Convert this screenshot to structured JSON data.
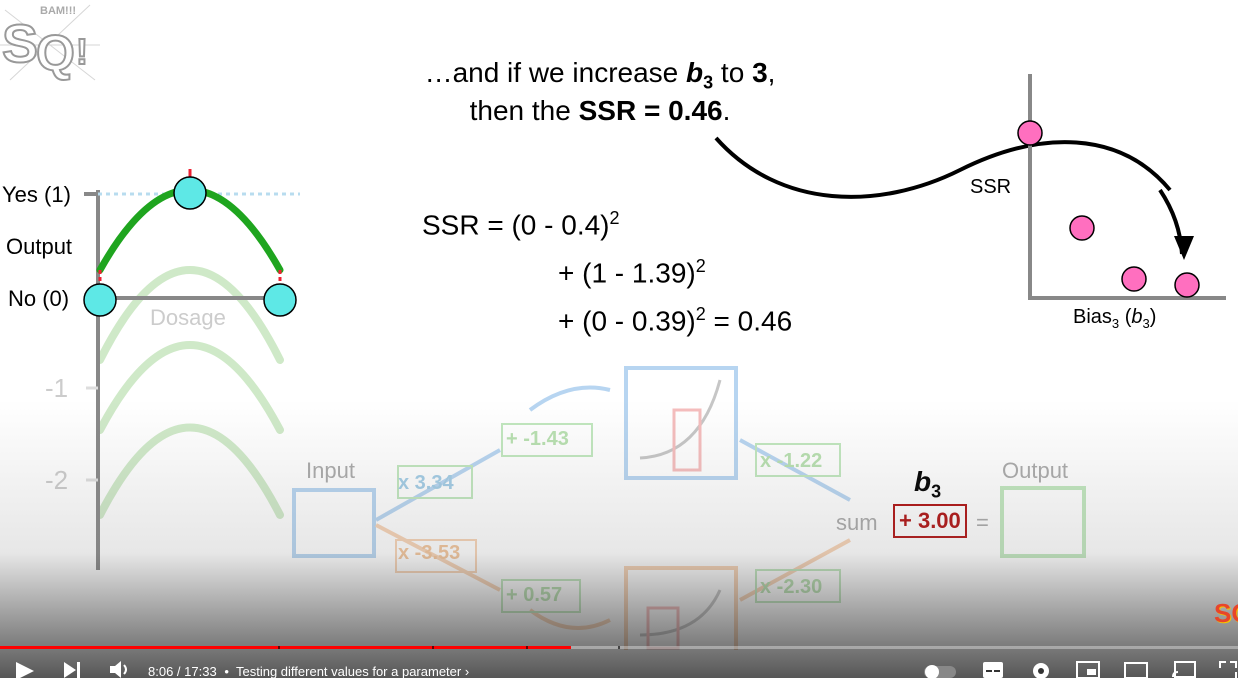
{
  "caption": {
    "line1_pre": "…and if we increase ",
    "line1_b": "b",
    "line1_sub": "3",
    "line1_mid": " to ",
    "line1_val": "3",
    "line1_end": ",",
    "line2_pre": "then the ",
    "line2_bold": "SSR = 0.46",
    "line2_end": "."
  },
  "equation": {
    "line1": "SSR = (0 - 0.4)",
    "line2": "+ (1 - 1.39)",
    "line3": "+ (0 - 0.39)",
    "line3_end": " = 0.46",
    "sup": "2"
  },
  "left_graph": {
    "yes_label": "Yes (1)",
    "output_label": "Output",
    "no_label": "No (0)",
    "dosage_label": "Dosage",
    "tick_minus1": "-1",
    "tick_minus2": "-2"
  },
  "ssr_plot": {
    "y_label": "SSR",
    "x_label_pre": "Bias",
    "x_label_sub": "3",
    "x_label_mid": " (",
    "x_label_b": "b",
    "x_label_bsub": "3",
    "x_label_end": ")"
  },
  "network": {
    "input_label": "Input",
    "output_label": "Output",
    "w_top": "x 3.34",
    "w_bottom": "x -3.53",
    "b_top": "+ -1.43",
    "b_bottom": "+ 0.57",
    "w_out_top": "x -1.22",
    "w_out_bottom": "x -2.30",
    "sum_label": "sum",
    "b3_label": "b",
    "b3_sub": "3",
    "b3_value": "+ 3.00",
    "equals": "="
  },
  "logo": {
    "text": "SQ!",
    "top_text": "BAM!!!"
  },
  "player": {
    "time_current": "8:06",
    "time_total": "17:33",
    "time_sep": " / ",
    "bullet": "•",
    "chapter_title": "Testing different values for a parameter",
    "chevron": "›",
    "progress_fraction": 0.461
  },
  "colors": {
    "green_curve": "#1fa51f",
    "faded_green": "#bfe3b6",
    "cyan_dot": "#5ee8e6",
    "pink_dot": "#ff6fbf",
    "red_value": "#b01010",
    "blue_box": "#7eb3e6",
    "orange_box": "#f2b07a"
  }
}
